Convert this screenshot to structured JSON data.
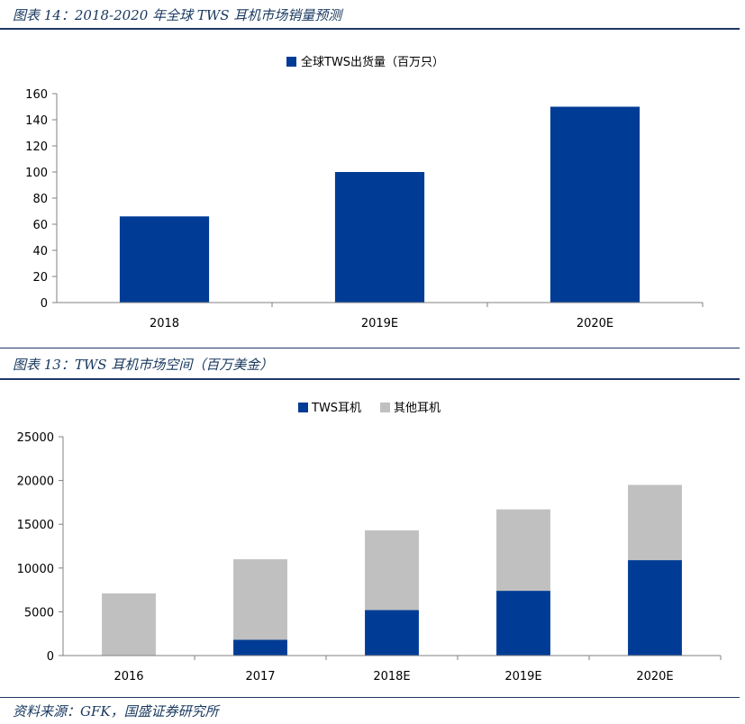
{
  "figures": [
    {
      "caption": "图表 14：2018-2020 年全球 TWS 耳机市场销量预测"
    },
    {
      "caption": "图表 13：TWS 耳机市场空间（百万美金）"
    }
  ],
  "source": "资料来源：GFK，国盛证券研究所",
  "colors": {
    "tws": "#003c96",
    "other": "#c0c0c0",
    "caption": "#17375e"
  },
  "chart_data": [
    {
      "type": "bar",
      "categories": [
        "2018",
        "2019E",
        "2020E"
      ],
      "series": [
        {
          "name": "全球TWS出货量（百万只）",
          "values": [
            66,
            100,
            150
          ]
        }
      ],
      "yticks": [
        "0",
        "20",
        "40",
        "60",
        "80",
        "100",
        "120",
        "140",
        "160"
      ],
      "ylim": [
        0,
        160
      ],
      "grid": false,
      "legend": "top-center"
    },
    {
      "type": "bar",
      "stacked": true,
      "categories": [
        "2016",
        "2017",
        "2018E",
        "2019E",
        "2020E"
      ],
      "series": [
        {
          "name": "TWS耳机",
          "values": [
            0,
            1800,
            5200,
            7400,
            10900
          ]
        },
        {
          "name": "其他耳机",
          "values": [
            7100,
            9200,
            9100,
            9300,
            8600
          ]
        }
      ],
      "yticks": [
        "0",
        "5000",
        "10000",
        "15000",
        "20000",
        "25000"
      ],
      "ylim": [
        0,
        25000
      ],
      "grid": false,
      "legend": "top-center"
    }
  ]
}
